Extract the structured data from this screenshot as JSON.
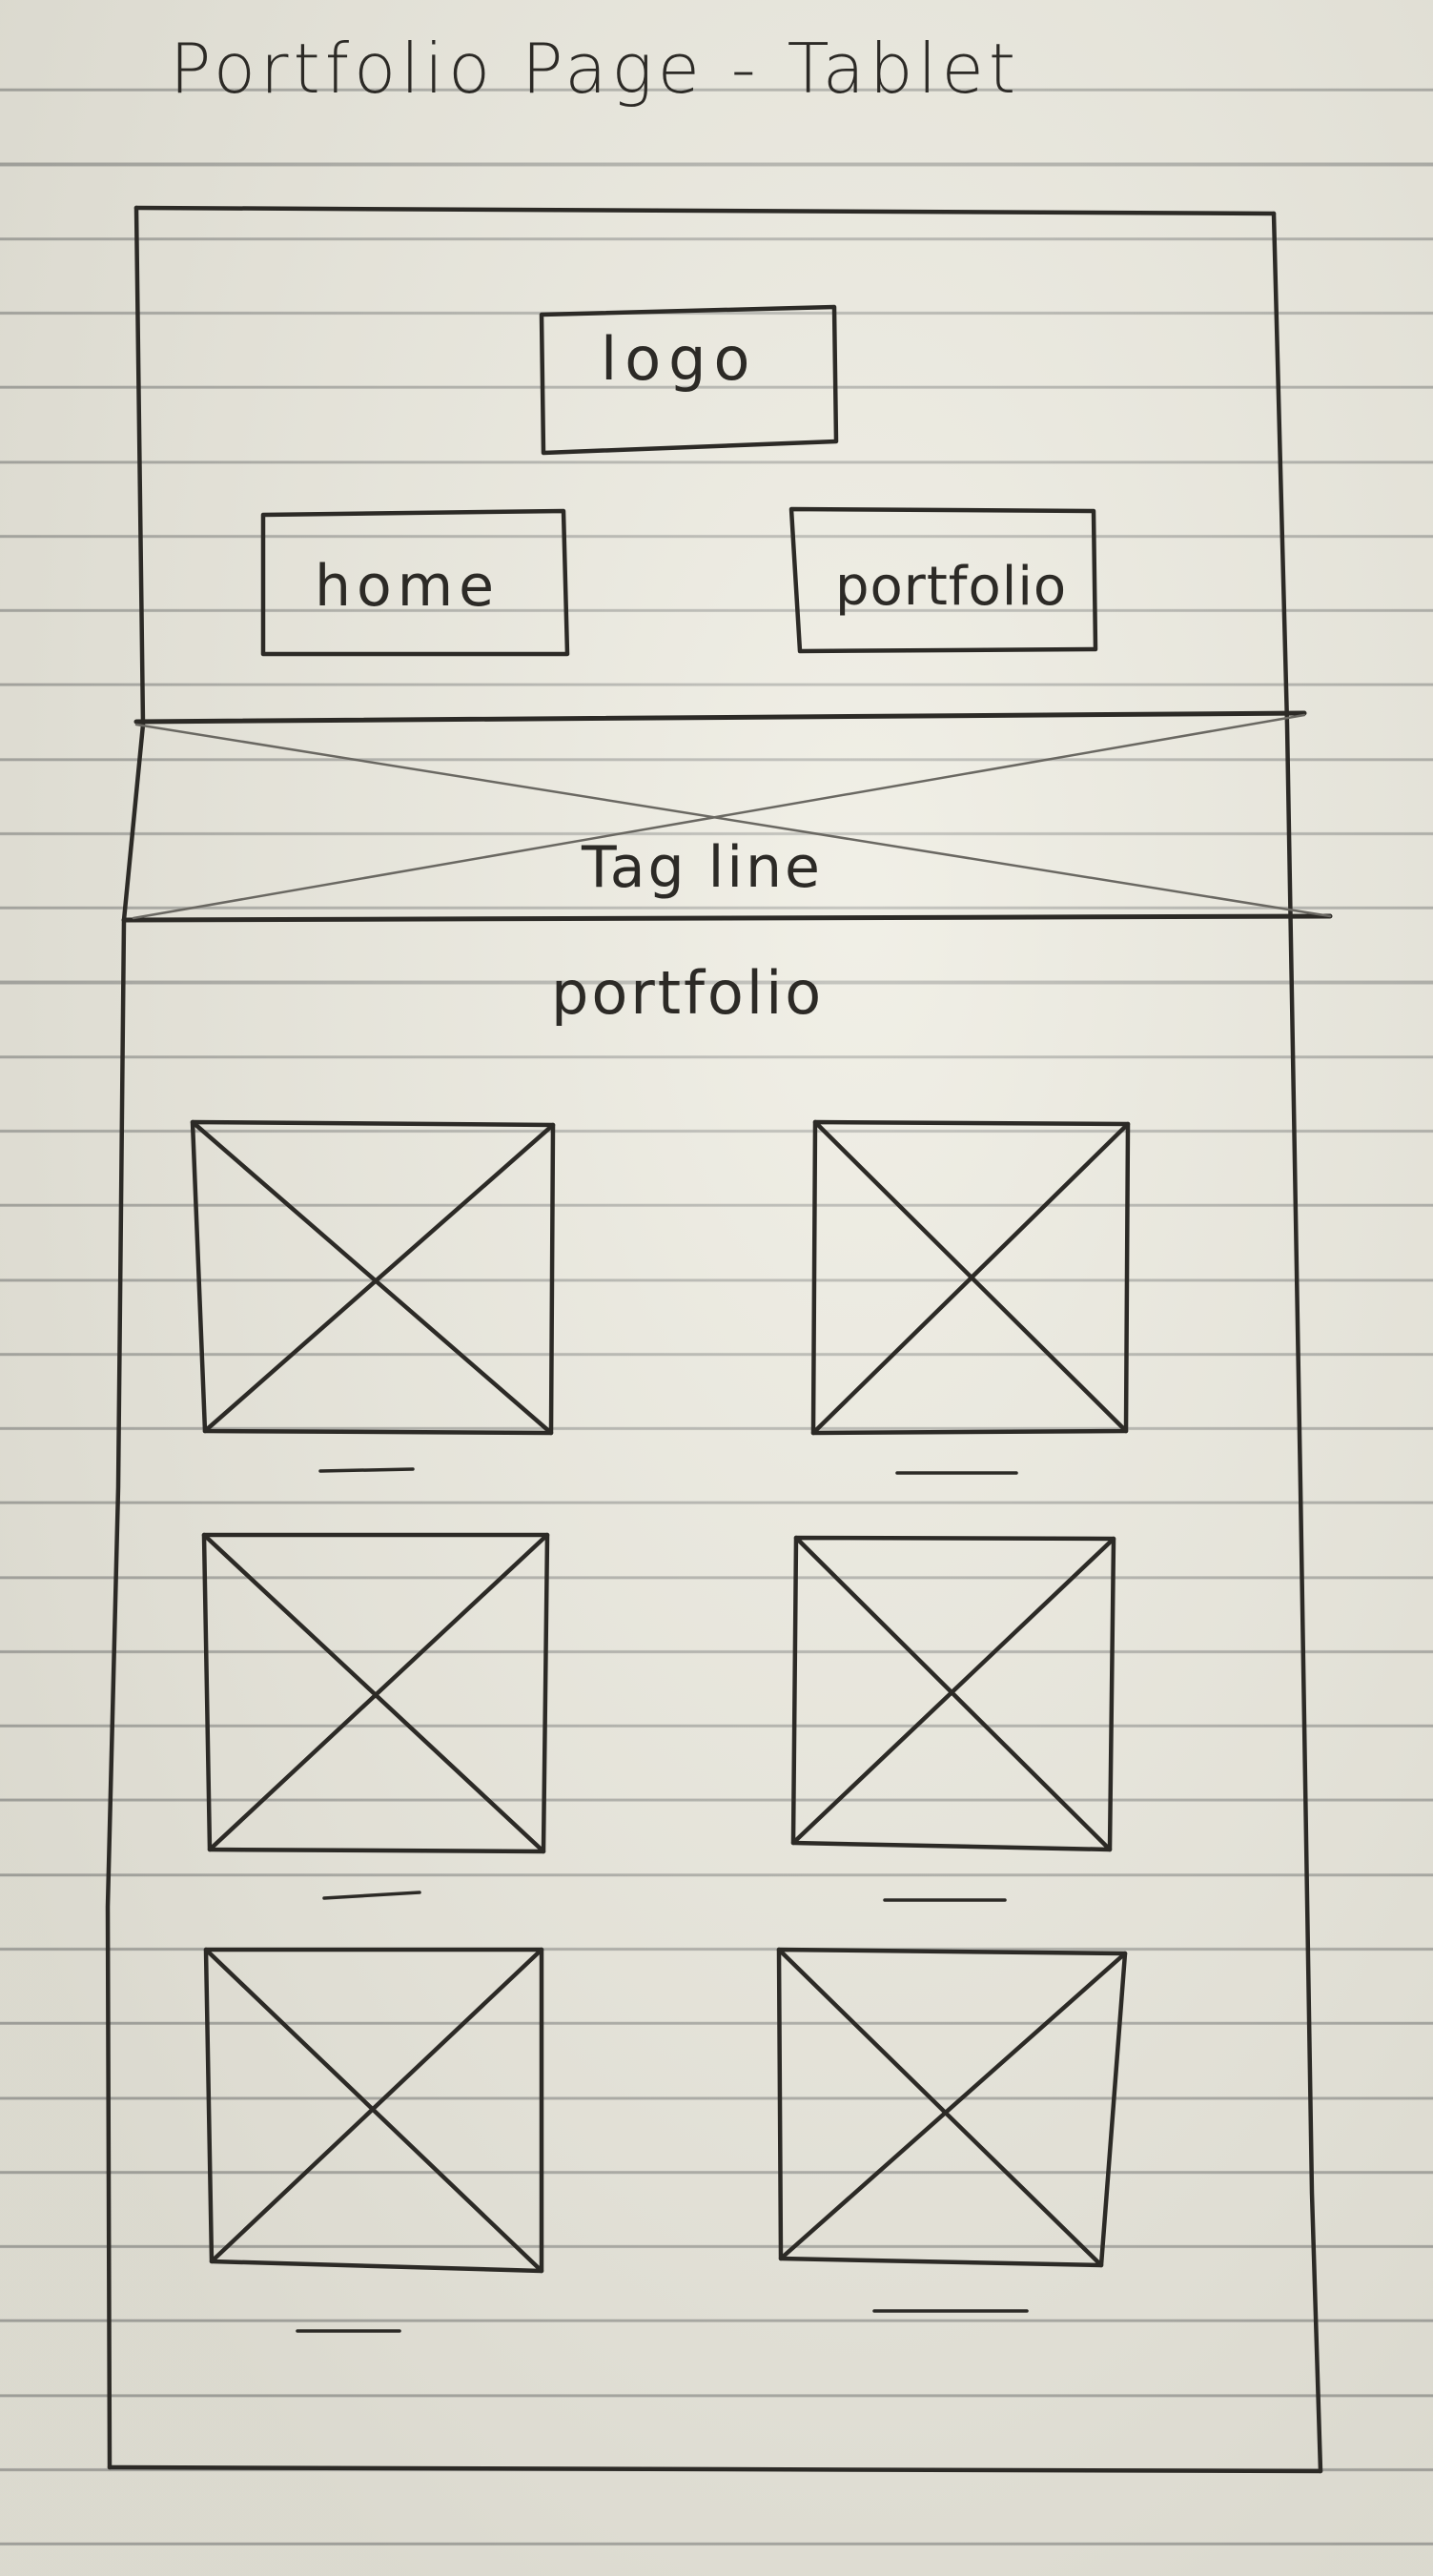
{
  "title": "Portfolio Page - Tablet",
  "header": {
    "logo": "logo",
    "nav": {
      "home": "home",
      "portfolio": "portfolio"
    }
  },
  "hero": {
    "tagline": "Tag line"
  },
  "section": {
    "heading": "portfolio",
    "items": [
      {
        "image": "image-placeholder",
        "caption": "caption-placeholder"
      },
      {
        "image": "image-placeholder",
        "caption": "caption-placeholder"
      },
      {
        "image": "image-placeholder",
        "caption": "caption-placeholder"
      },
      {
        "image": "image-placeholder",
        "caption": "caption-placeholder"
      },
      {
        "image": "image-placeholder",
        "caption": "caption-placeholder"
      },
      {
        "image": "image-placeholder",
        "caption": "caption-placeholder"
      }
    ]
  },
  "colors": {
    "paper": "#e9e7dc",
    "rule": "#a7a7a1",
    "ink": "#2c2a26"
  }
}
